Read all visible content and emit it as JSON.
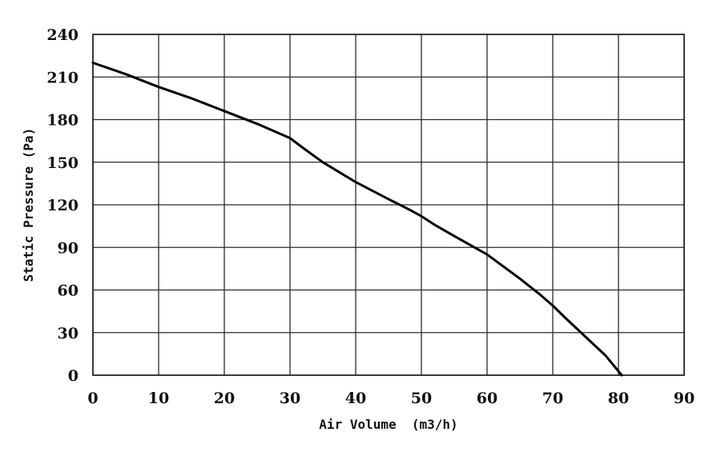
{
  "chart_data": {
    "type": "line",
    "title": "",
    "xlabel": "Air Volume  (m3/h)",
    "ylabel": "Static Pressure (Pa)",
    "xlim": [
      0,
      90
    ],
    "ylim": [
      0,
      240
    ],
    "xticks": [
      0,
      10,
      20,
      30,
      40,
      50,
      60,
      70,
      80,
      90
    ],
    "yticks": [
      0,
      30,
      60,
      90,
      120,
      150,
      180,
      210,
      240
    ],
    "grid": true,
    "legend": "none",
    "colors": {
      "line": "#000000",
      "grid": "#2a2a2a",
      "text": "#111111"
    },
    "series": [
      {
        "x": [
          0,
          5,
          10,
          15,
          20,
          25,
          30,
          32,
          35,
          40,
          45,
          48,
          50,
          52,
          55,
          60,
          65,
          68,
          70,
          72,
          75,
          78,
          80.5
        ],
        "y": [
          220,
          212,
          203,
          195,
          186,
          177,
          167,
          160,
          150,
          136,
          124,
          117,
          112,
          106,
          98,
          85,
          68,
          57,
          49,
          40,
          27,
          14,
          0
        ]
      }
    ]
  }
}
